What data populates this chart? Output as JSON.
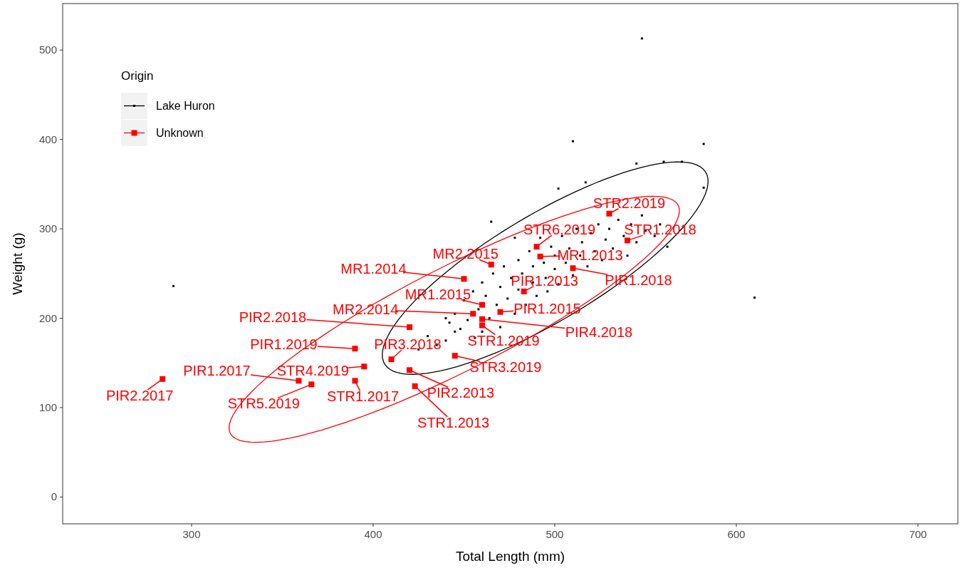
{
  "chart_data": {
    "type": "scatter",
    "xlabel": "Total Length (mm)",
    "ylabel": "Weight (g)",
    "legend_title": "Origin",
    "legend": "top left",
    "grid": false,
    "xlim": [
      229,
      722
    ],
    "ylim": [
      -30,
      552
    ],
    "xticks": [
      300,
      400,
      500,
      600,
      700
    ],
    "yticks": [
      0,
      100,
      200,
      300,
      400,
      500
    ],
    "series": [
      {
        "name": "Lake Huron",
        "color": "#000000",
        "marker": "square",
        "x": [
          548,
          510,
          545,
          560,
          570,
          582,
          582,
          610,
          290,
          517,
          502,
          465,
          478,
          440,
          430,
          425,
          435,
          445,
          440,
          442,
          445,
          448,
          450,
          452,
          455,
          456,
          458,
          460,
          460,
          462,
          464,
          466,
          468,
          470,
          470,
          472,
          474,
          476,
          478,
          480,
          480,
          482,
          484,
          486,
          488,
          488,
          490,
          492,
          494,
          495,
          496,
          498,
          500,
          500,
          502,
          504,
          506,
          508,
          510,
          512,
          514,
          515,
          518,
          520,
          522,
          524,
          526,
          528,
          530,
          532,
          535,
          538,
          540,
          542,
          545,
          548,
          550,
          555,
          558,
          562
        ],
        "values": [
          513,
          398,
          373,
          375,
          375,
          395,
          346,
          223,
          236,
          352,
          345,
          308,
          290,
          200,
          180,
          165,
          170,
          185,
          175,
          195,
          205,
          188,
          220,
          198,
          230,
          178,
          210,
          240,
          185,
          225,
          200,
          250,
          215,
          235,
          190,
          258,
          222,
          245,
          205,
          265,
          232,
          250,
          215,
          275,
          240,
          258,
          225,
          290,
          262,
          245,
          230,
          280,
          255,
          270,
          238,
          292,
          262,
          278,
          248,
          300,
          270,
          285,
          258,
          295,
          275,
          305,
          265,
          288,
          300,
          278,
          310,
          292,
          270,
          305,
          285,
          315,
          298,
          292,
          305,
          280
        ]
      },
      {
        "name": "Unknown",
        "color": "#ff0000",
        "marker": "square",
        "x": [
          284,
          359,
          366,
          395,
          390,
          390,
          410,
          420,
          423,
          445,
          420,
          455,
          460,
          460,
          460,
          470,
          483,
          450,
          465,
          490,
          492,
          510,
          530,
          540
        ],
        "values": [
          132,
          130,
          126,
          146,
          130,
          166,
          154,
          142,
          124,
          158,
          190,
          205,
          199,
          192,
          215,
          207,
          230,
          244,
          260,
          280,
          269,
          256,
          317,
          287
        ]
      }
    ],
    "annotations": [
      {
        "text": "PIR2.2017",
        "x": 284,
        "y": 132
      },
      {
        "text": "PIR1.2017",
        "x": 359,
        "y": 130
      },
      {
        "text": "STR5.2019",
        "x": 366,
        "y": 126
      },
      {
        "text": "STR4.2019",
        "x": 395,
        "y": 146
      },
      {
        "text": "STR1.2017",
        "x": 390,
        "y": 130
      },
      {
        "text": "PIR1.2019",
        "x": 390,
        "y": 166
      },
      {
        "text": "PIR3.2018",
        "x": 410,
        "y": 154
      },
      {
        "text": "PIR2.2013",
        "x": 420,
        "y": 142
      },
      {
        "text": "STR1.2013",
        "x": 423,
        "y": 124
      },
      {
        "text": "STR3.2019",
        "x": 445,
        "y": 158
      },
      {
        "text": "PIR2.2018",
        "x": 420,
        "y": 190
      },
      {
        "text": "MR2.2014",
        "x": 455,
        "y": 205
      },
      {
        "text": "PIR4.2018",
        "x": 460,
        "y": 199
      },
      {
        "text": "STR1.2019",
        "x": 460,
        "y": 192
      },
      {
        "text": "MR1.2015",
        "x": 460,
        "y": 215
      },
      {
        "text": "PIR1.2015",
        "x": 470,
        "y": 207
      },
      {
        "text": "PIR1.2013",
        "x": 483,
        "y": 230
      },
      {
        "text": "MR1.2014",
        "x": 450,
        "y": 244
      },
      {
        "text": "MR2.2015",
        "x": 465,
        "y": 260
      },
      {
        "text": "STR6.2019",
        "x": 490,
        "y": 280
      },
      {
        "text": "MR1.2013",
        "x": 492,
        "y": 269
      },
      {
        "text": "PIR1.2018",
        "x": 510,
        "y": 256
      },
      {
        "text": "STR2.2019",
        "x": 530,
        "y": 317
      },
      {
        "text": "STR1.2018",
        "x": 540,
        "y": 287
      }
    ]
  }
}
